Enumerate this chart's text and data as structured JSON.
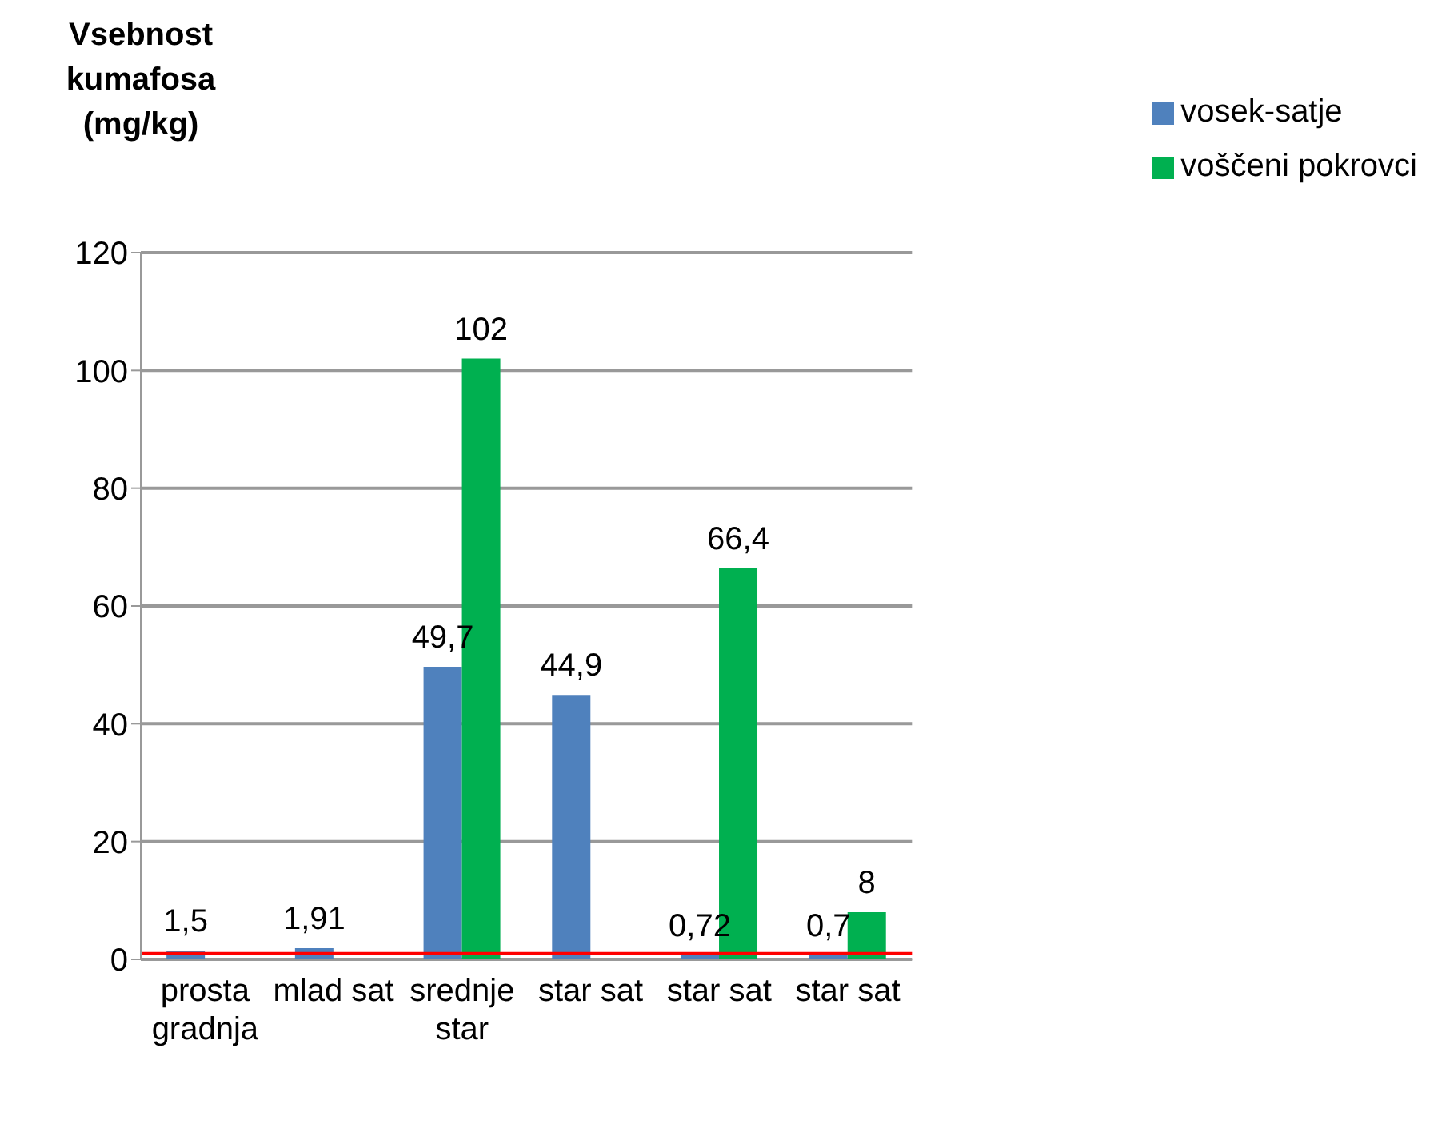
{
  "chart_data": {
    "type": "bar",
    "ylabel": "Vsebnost kumafosa (mg/kg)",
    "categories": [
      "prosta gradnja",
      "mlad sat",
      "srednje star",
      "star sat",
      "star sat",
      "star sat"
    ],
    "series": [
      {
        "name": "vosek-satje",
        "color": "#4f81bd",
        "values": [
          1.5,
          1.91,
          49.7,
          44.9,
          0.72,
          0.7
        ],
        "value_labels": [
          "1,5",
          "1,91",
          "49,7",
          "44,9",
          "0,72",
          "0,7"
        ]
      },
      {
        "name": "voščeni pokrovci",
        "color": "#00b050",
        "values": [
          null,
          null,
          102,
          null,
          66.4,
          8
        ],
        "value_labels": [
          null,
          null,
          "102",
          null,
          "66,4",
          "8"
        ]
      }
    ],
    "ylim": [
      0,
      120
    ],
    "yticks": [
      0,
      20,
      40,
      60,
      80,
      100,
      120
    ],
    "grid": "y",
    "legend": "top right",
    "ref_lines": [
      {
        "axis": "y",
        "value": 1,
        "color": "#ff0000"
      }
    ]
  }
}
